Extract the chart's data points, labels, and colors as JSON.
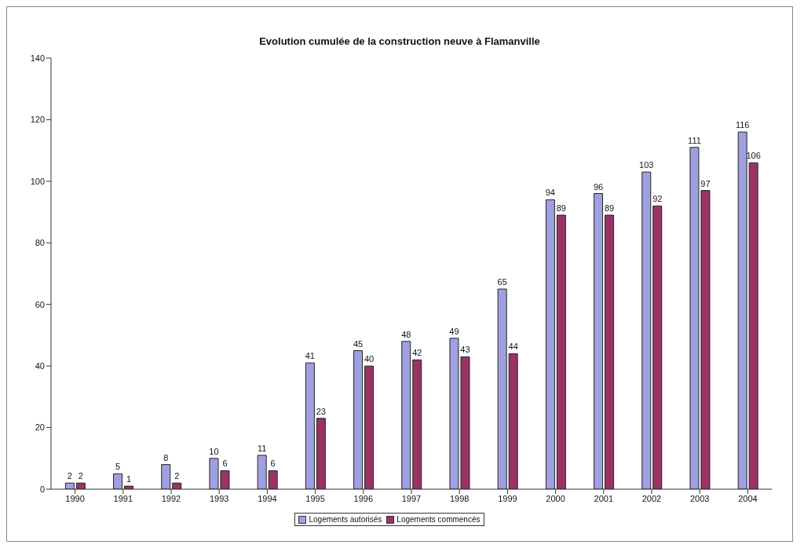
{
  "chart_data": {
    "type": "bar",
    "title": "Evolution cumulée de la construction neuve à Flamanville",
    "categories": [
      "1990",
      "1991",
      "1992",
      "1993",
      "1994",
      "1995",
      "1996",
      "1997",
      "1998",
      "1999",
      "2000",
      "2001",
      "2002",
      "2003",
      "2004"
    ],
    "series": [
      {
        "name": "Logements autorisés",
        "color": "#a0a0e0",
        "values": [
          2,
          5,
          8,
          10,
          11,
          41,
          45,
          48,
          49,
          65,
          94,
          96,
          103,
          111,
          116
        ]
      },
      {
        "name": "Logements commencés",
        "color": "#993366",
        "values": [
          2,
          1,
          2,
          6,
          6,
          23,
          40,
          42,
          43,
          44,
          89,
          89,
          92,
          97,
          106
        ]
      }
    ],
    "ylim": [
      0,
      140
    ],
    "yticks": [
      0,
      20,
      40,
      60,
      80,
      100,
      120,
      140
    ],
    "grid": false,
    "legend": "bottom",
    "data_labels": true
  }
}
